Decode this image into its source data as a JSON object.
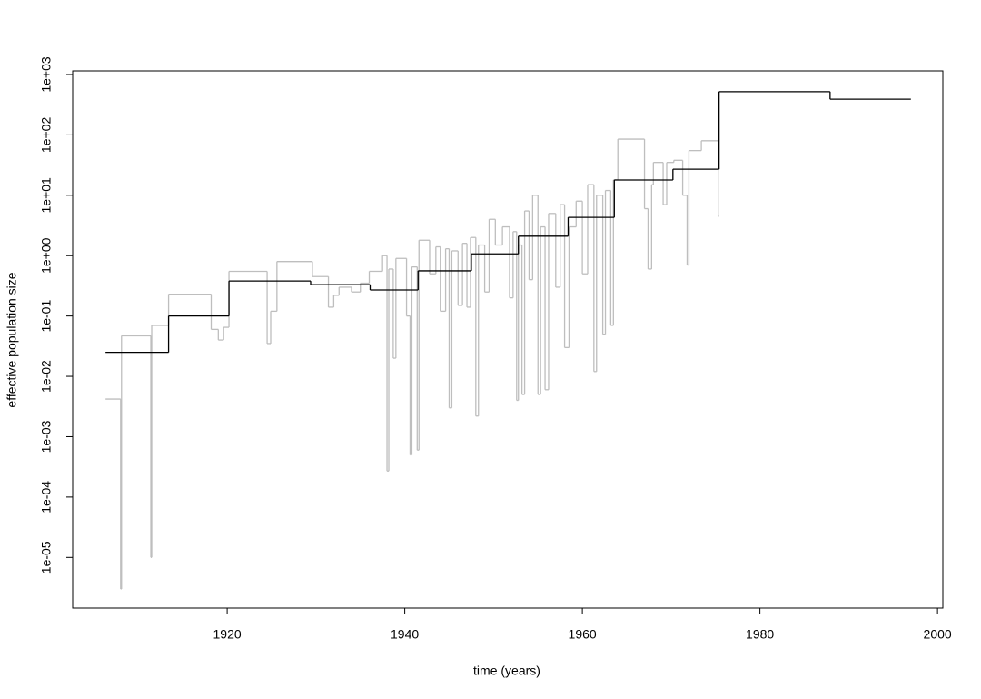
{
  "chart_data": {
    "type": "step",
    "xlabel": "time (years)",
    "ylabel": "effective population size",
    "xlim": [
      1902.6,
      2000.6
    ],
    "xticks": [
      1920,
      1940,
      1960,
      1980,
      2000
    ],
    "ylim": [
      1.45e-06,
      1148
    ],
    "log_y": true,
    "yticks": [
      {
        "value": 1e-05,
        "label": "1e-05"
      },
      {
        "value": 0.0001,
        "label": "1e-04"
      },
      {
        "value": 0.001,
        "label": "1e-03"
      },
      {
        "value": 0.01,
        "label": "1e-02"
      },
      {
        "value": 0.1,
        "label": "1e-01"
      },
      {
        "value": 1,
        "label": "1e+00"
      },
      {
        "value": 10,
        "label": "1e+01"
      },
      {
        "value": 100,
        "label": "1e+02"
      },
      {
        "value": 1000,
        "label": "1e+03"
      }
    ],
    "series": [
      {
        "color": "#bebebe",
        "x": [
          1906.3,
          1908.0,
          1908.1,
          1911.4,
          1911.5,
          1913.4,
          1918.2,
          1919.0,
          1919.6,
          1920.2,
          1924.5,
          1924.9,
          1925.6,
          1929.6,
          1931.4,
          1932.0,
          1932.6,
          1934.0,
          1935.0,
          1936.0,
          1937.5,
          1938.0,
          1938.2,
          1938.7,
          1939.0,
          1940.2,
          1940.6,
          1940.8,
          1941.4,
          1941.6,
          1942.8,
          1943.5,
          1944.0,
          1944.6,
          1945.0,
          1945.3,
          1946.0,
          1946.5,
          1947.0,
          1947.4,
          1948.0,
          1948.3,
          1949.0,
          1949.5,
          1950.2,
          1951.0,
          1951.8,
          1952.2,
          1952.6,
          1952.8,
          1953.2,
          1953.5,
          1954.0,
          1954.4,
          1955.0,
          1955.3,
          1955.8,
          1956.2,
          1957.0,
          1957.5,
          1958.0,
          1958.5,
          1959.3,
          1960.0,
          1960.6,
          1961.3,
          1961.6,
          1962.3,
          1962.6,
          1963.2,
          1963.5,
          1964.0,
          1967.0,
          1967.4,
          1967.8,
          1968.0,
          1969.1,
          1969.5,
          1970.3,
          1971.3,
          1971.8,
          1972.0,
          1973.4,
          1975.3,
          1975.4
        ],
        "values": [
          0.0042,
          3e-06,
          0.047,
          1e-05,
          0.07,
          0.23,
          0.06,
          0.04,
          0.065,
          0.55,
          0.035,
          0.12,
          0.8,
          0.45,
          0.14,
          0.22,
          0.3,
          0.25,
          0.35,
          0.55,
          1.0,
          0.00027,
          0.6,
          0.02,
          0.9,
          0.1,
          0.0005,
          0.65,
          0.0006,
          1.8,
          0.5,
          1.4,
          0.12,
          1.3,
          0.003,
          1.2,
          0.15,
          1.6,
          0.14,
          2.0,
          0.0022,
          1.5,
          0.25,
          4.0,
          1.5,
          3.0,
          0.2,
          2.5,
          0.004,
          1.5,
          0.005,
          5.5,
          0.4,
          10,
          0.005,
          3,
          0.006,
          5,
          0.3,
          7,
          0.03,
          3,
          8,
          0.5,
          15,
          0.012,
          10,
          0.05,
          12,
          0.07,
          18,
          85,
          6,
          0.6,
          15,
          35,
          7,
          35,
          38,
          10,
          0.7,
          55,
          80,
          4.5,
          4.5
        ]
      },
      {
        "color": "#000000",
        "x": [
          1906.3,
          1913.4,
          1920.2,
          1929.4,
          1936.1,
          1941.5,
          1947.5,
          1952.8,
          1958.4,
          1963.6,
          1970.2,
          1975.4,
          1987.9,
          1997.0
        ],
        "values": [
          0.025,
          0.1,
          0.38,
          0.33,
          0.27,
          0.56,
          1.07,
          2.1,
          4.3,
          17.9,
          27,
          520,
          390,
          390
        ]
      }
    ]
  }
}
